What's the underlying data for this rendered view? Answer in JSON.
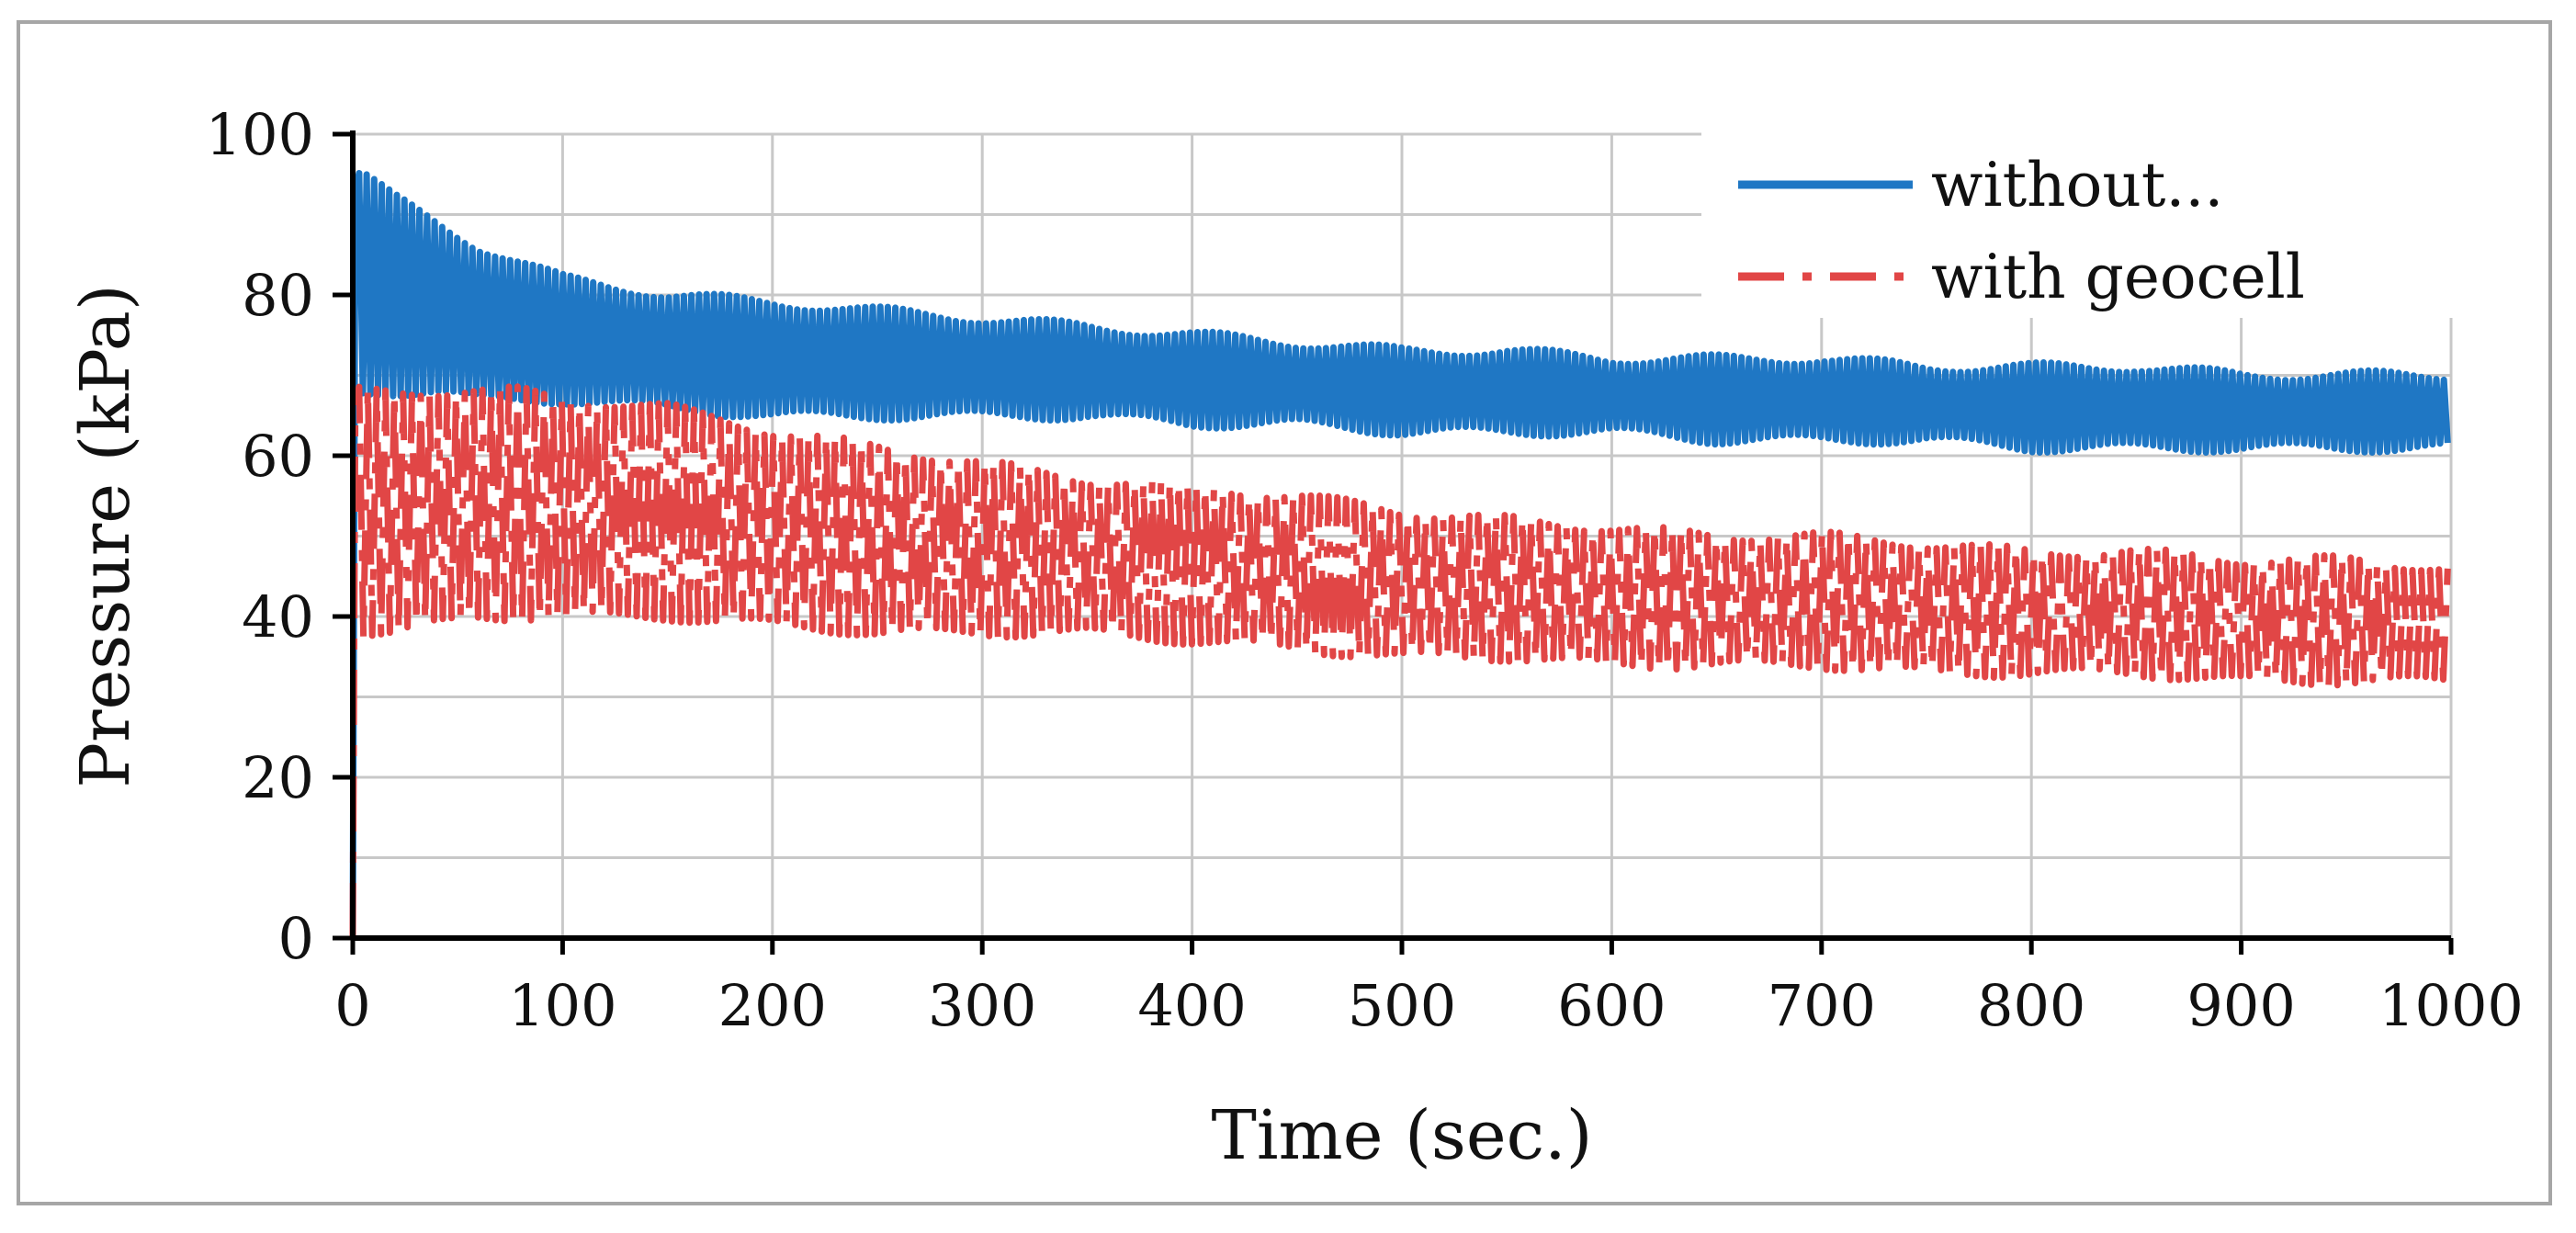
{
  "chart_data": {
    "type": "line",
    "xlabel": "Time (sec.)",
    "ylabel": "Pressure (kPa)",
    "xlim": [
      0,
      1000
    ],
    "ylim": [
      0,
      100
    ],
    "x_ticks": [
      "0",
      "100",
      "200",
      "300",
      "400",
      "500",
      "600",
      "700",
      "800",
      "900",
      "1000"
    ],
    "y_ticks": [
      "0",
      "20",
      "40",
      "60",
      "80",
      "100"
    ],
    "grid": true,
    "legend_position": "top-right",
    "legend_labels": [
      "without...",
      "with geocell"
    ],
    "colors": {
      "without": "#1f77c4",
      "with_geocell": "#e14646",
      "grid": "#c8c8c8",
      "axis": "#000000"
    },
    "series": [
      {
        "id": "without",
        "style": "solid",
        "x": [
          0,
          5,
          20,
          40,
          60,
          80,
          100,
          150,
          200,
          250,
          300,
          350,
          400,
          450,
          500,
          550,
          600,
          650,
          700,
          750,
          800,
          850,
          900,
          950,
          1000
        ],
        "upper": [
          0,
          95,
          92,
          89,
          86,
          84,
          82,
          80,
          79,
          78,
          77,
          76,
          75,
          74,
          73,
          73,
          72,
          72,
          72,
          71,
          71,
          71,
          70,
          70,
          70
        ],
        "lower": [
          0,
          68,
          68,
          68,
          67,
          67,
          67,
          66,
          65,
          65,
          65,
          65,
          64,
          64,
          63,
          63,
          63,
          62,
          62,
          62,
          61,
          61,
          61,
          61,
          61
        ]
      },
      {
        "id": "with_geocell",
        "style": "dashed",
        "x": [
          0,
          5,
          20,
          40,
          60,
          80,
          100,
          150,
          200,
          250,
          300,
          350,
          400,
          450,
          500,
          550,
          600,
          650,
          700,
          750,
          800,
          850,
          900,
          950,
          1000
        ],
        "upper": [
          0,
          68,
          68,
          68,
          68,
          68,
          67,
          66,
          63,
          61,
          59,
          57,
          56,
          55,
          53,
          52,
          51,
          50,
          50,
          49,
          48,
          48,
          47,
          47,
          46
        ],
        "lower": [
          0,
          38,
          38,
          39,
          40,
          40,
          40,
          40,
          39,
          38,
          38,
          38,
          37,
          36,
          35,
          35,
          34,
          34,
          34,
          33,
          33,
          33,
          32,
          32,
          32
        ]
      }
    ]
  }
}
